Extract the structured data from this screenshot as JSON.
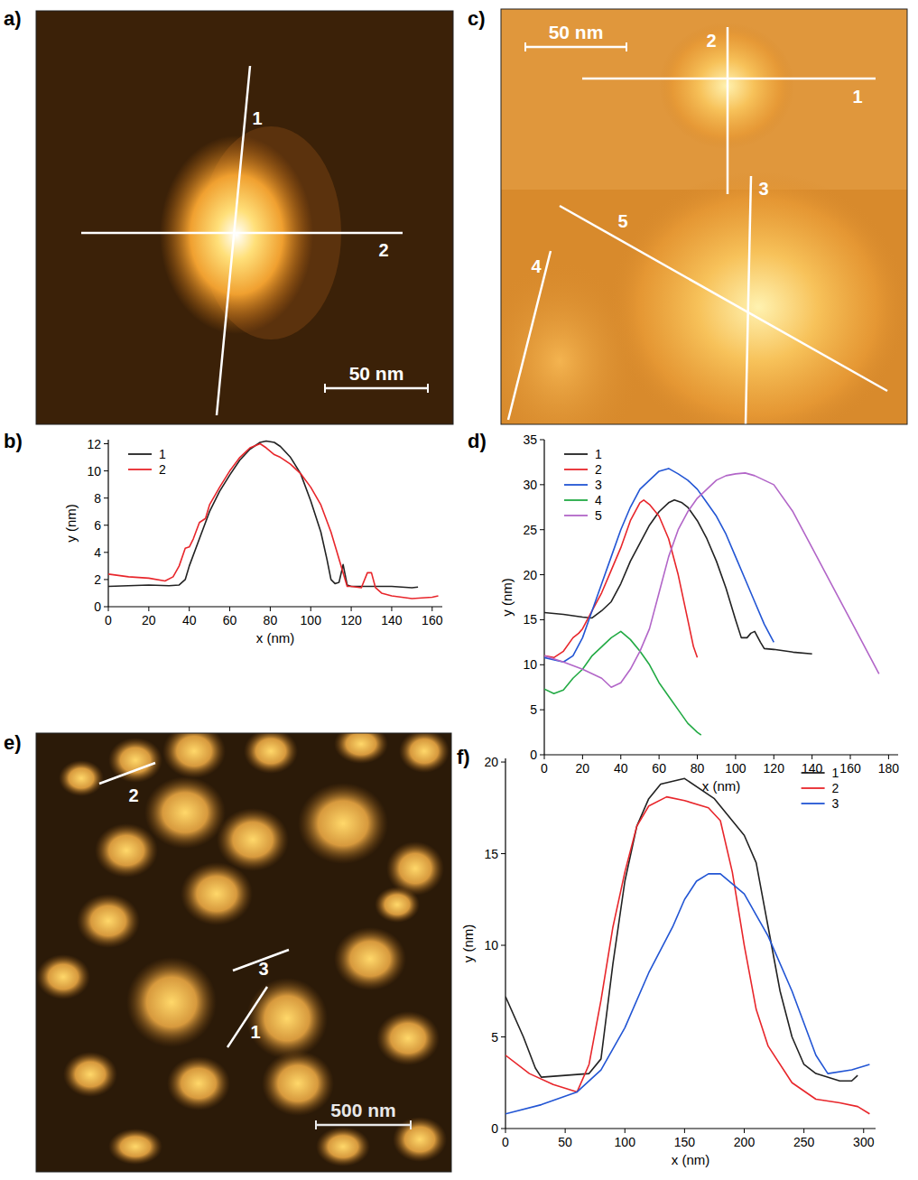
{
  "chart_data": [
    {
      "type": "line",
      "panel": "b)",
      "x_label": "x (nm)",
      "y_label": "y (nm)",
      "xlim": [
        0,
        165
      ],
      "xticks": [
        0,
        20,
        40,
        60,
        80,
        100,
        120,
        140,
        160
      ],
      "ylim": [
        0,
        12.3
      ],
      "yticks": [
        0,
        2,
        4,
        6,
        8,
        10,
        12
      ],
      "grid": false,
      "legend": "upper left",
      "series": [
        {
          "name": "1",
          "color": "#222222",
          "x": [
            0,
            10,
            20,
            30,
            35,
            38,
            40,
            45,
            50,
            55,
            60,
            65,
            70,
            75,
            78,
            82,
            85,
            90,
            95,
            100,
            105,
            108,
            110,
            112,
            114,
            116,
            118,
            120,
            130,
            140,
            150,
            153
          ],
          "values": [
            1.5,
            1.55,
            1.6,
            1.55,
            1.6,
            2,
            3,
            5,
            7,
            8.5,
            9.7,
            10.8,
            11.6,
            12.1,
            12.2,
            12.1,
            11.8,
            11,
            9.8,
            7.8,
            5.5,
            3.5,
            2,
            1.7,
            1.8,
            3.1,
            1.6,
            1.5,
            1.5,
            1.5,
            1.4,
            1.45
          ]
        },
        {
          "name": "2",
          "color": "#e8262b",
          "x": [
            0,
            10,
            20,
            28,
            32,
            35,
            38,
            40,
            42,
            45,
            48,
            50,
            55,
            60,
            65,
            70,
            75,
            78,
            82,
            85,
            90,
            95,
            100,
            105,
            110,
            113,
            116,
            118,
            120,
            125,
            128,
            130,
            132,
            135,
            140,
            150,
            160,
            163
          ],
          "values": [
            2.4,
            2.2,
            2.1,
            1.9,
            2.2,
            3,
            4.3,
            4.4,
            5,
            6.2,
            6.5,
            7.5,
            8.8,
            10,
            11,
            11.7,
            12,
            11.7,
            11.2,
            11,
            10.5,
            9.8,
            8.8,
            7.5,
            5.5,
            4,
            2.5,
            1.5,
            1.5,
            1.4,
            2.5,
            2.5,
            1.4,
            1,
            0.8,
            0.6,
            0.7,
            0.8
          ]
        }
      ]
    },
    {
      "type": "line",
      "panel": "d)",
      "x_label": "x (nm)",
      "y_label": "y (nm)",
      "xlim": [
        0,
        185
      ],
      "xticks": [
        0,
        20,
        40,
        60,
        80,
        100,
        120,
        140,
        160,
        180
      ],
      "ylim": [
        0,
        35
      ],
      "yticks": [
        0,
        5,
        10,
        15,
        20,
        25,
        30,
        35
      ],
      "grid": false,
      "legend": "upper left",
      "series": [
        {
          "name": "1",
          "color": "#222222",
          "x": [
            0,
            10,
            20,
            25,
            30,
            35,
            40,
            45,
            50,
            55,
            60,
            65,
            68,
            72,
            75,
            80,
            85,
            90,
            95,
            100,
            103,
            106,
            108,
            110,
            113,
            115,
            120,
            130,
            140
          ],
          "values": [
            15.8,
            15.6,
            15.3,
            15.2,
            16,
            17,
            19,
            21.5,
            23.5,
            25.5,
            27,
            28,
            28.3,
            28,
            27.5,
            26,
            24,
            21.5,
            18.5,
            15,
            13,
            13,
            13.5,
            13.7,
            12.5,
            11.8,
            11.7,
            11.4,
            11.2
          ]
        },
        {
          "name": "2",
          "color": "#e8262b",
          "x": [
            0,
            5,
            10,
            15,
            18,
            20,
            25,
            30,
            35,
            40,
            45,
            50,
            52,
            55,
            60,
            65,
            70,
            75,
            78,
            80
          ],
          "values": [
            11,
            10.8,
            11.5,
            13,
            13.5,
            14,
            16,
            18,
            20.5,
            23,
            26,
            28,
            28.3,
            27.8,
            26.5,
            24,
            20,
            15,
            12,
            10.8
          ]
        },
        {
          "name": "3",
          "color": "#2255d4",
          "x": [
            0,
            10,
            15,
            20,
            25,
            30,
            35,
            40,
            45,
            50,
            55,
            60,
            65,
            70,
            75,
            80,
            85,
            90,
            95,
            100,
            105,
            110,
            115,
            120
          ],
          "values": [
            10.8,
            10.3,
            11,
            13,
            16,
            19,
            22,
            25,
            27.5,
            29.5,
            30.5,
            31.5,
            31.8,
            31.2,
            30.5,
            29.5,
            28,
            26.5,
            24.5,
            22,
            19.5,
            17,
            14.5,
            12.5
          ]
        },
        {
          "name": "4",
          "color": "#22aa44",
          "x": [
            0,
            5,
            10,
            15,
            20,
            25,
            30,
            35,
            40,
            45,
            50,
            55,
            60,
            65,
            70,
            75,
            80,
            82
          ],
          "values": [
            7.3,
            6.8,
            7.2,
            8.5,
            9.5,
            11,
            12,
            13,
            13.7,
            12.8,
            11.5,
            10,
            8,
            6.5,
            5,
            3.5,
            2.5,
            2.2
          ]
        },
        {
          "name": "5",
          "color": "#b266c8",
          "x": [
            0,
            10,
            20,
            30,
            35,
            40,
            45,
            50,
            55,
            60,
            65,
            70,
            75,
            80,
            85,
            90,
            95,
            100,
            105,
            110,
            115,
            120,
            130,
            140,
            150,
            160,
            170,
            175
          ],
          "values": [
            11,
            10.3,
            9.5,
            8.5,
            7.5,
            8,
            9.5,
            11.5,
            14,
            18,
            22,
            25,
            27,
            28.5,
            29.5,
            30.5,
            31,
            31.2,
            31.3,
            31,
            30.5,
            30,
            27,
            23,
            19,
            15,
            11,
            9
          ]
        }
      ]
    },
    {
      "type": "line",
      "panel": "f)",
      "x_label": "x (nm)",
      "y_label": "y (nm)",
      "xlim": [
        0,
        310
      ],
      "xticks": [
        0,
        50,
        100,
        150,
        200,
        250,
        300
      ],
      "ylim": [
        0,
        20.2
      ],
      "yticks": [
        0,
        5,
        10,
        15,
        20
      ],
      "grid": false,
      "legend": "upper right",
      "series": [
        {
          "name": "1",
          "color": "#222222",
          "x": [
            0,
            15,
            25,
            30,
            50,
            70,
            80,
            90,
            100,
            110,
            120,
            130,
            150,
            175,
            200,
            210,
            220,
            230,
            240,
            250,
            260,
            280,
            290,
            295
          ],
          "values": [
            7.2,
            5,
            3.3,
            2.8,
            2.9,
            3,
            3.8,
            9,
            13.5,
            16.5,
            18,
            18.8,
            19.1,
            18,
            16,
            14.5,
            11,
            7.5,
            5,
            3.5,
            3,
            2.6,
            2.6,
            2.9
          ]
        },
        {
          "name": "2",
          "color": "#e8262b",
          "x": [
            0,
            20,
            40,
            60,
            70,
            80,
            90,
            100,
            110,
            120,
            135,
            150,
            170,
            180,
            190,
            200,
            210,
            220,
            240,
            260,
            280,
            295,
            305
          ],
          "values": [
            4,
            3,
            2.4,
            2,
            3.5,
            7,
            11,
            14,
            16.5,
            17.6,
            18.1,
            17.9,
            17.5,
            16.8,
            14,
            10,
            6.5,
            4.5,
            2.5,
            1.6,
            1.4,
            1.2,
            0.8
          ]
        },
        {
          "name": "3",
          "color": "#2255d4",
          "x": [
            0,
            30,
            60,
            80,
            100,
            120,
            140,
            150,
            160,
            170,
            180,
            200,
            220,
            240,
            260,
            270,
            290,
            305
          ],
          "values": [
            0.8,
            1.3,
            2,
            3.2,
            5.5,
            8.5,
            11,
            12.5,
            13.5,
            13.9,
            13.9,
            12.8,
            10.5,
            7.5,
            4,
            3,
            3.2,
            3.5
          ]
        }
      ]
    }
  ],
  "images": [
    {
      "panel": "a)",
      "scale_bar": "50 nm",
      "lines": [
        "1",
        "2"
      ]
    },
    {
      "panel": "c)",
      "scale_bar": "50 nm",
      "lines": [
        "1",
        "2",
        "3",
        "4",
        "5"
      ]
    },
    {
      "panel": "e)",
      "scale_bar": "500 nm",
      "lines": [
        "1",
        "2",
        "3"
      ]
    }
  ]
}
